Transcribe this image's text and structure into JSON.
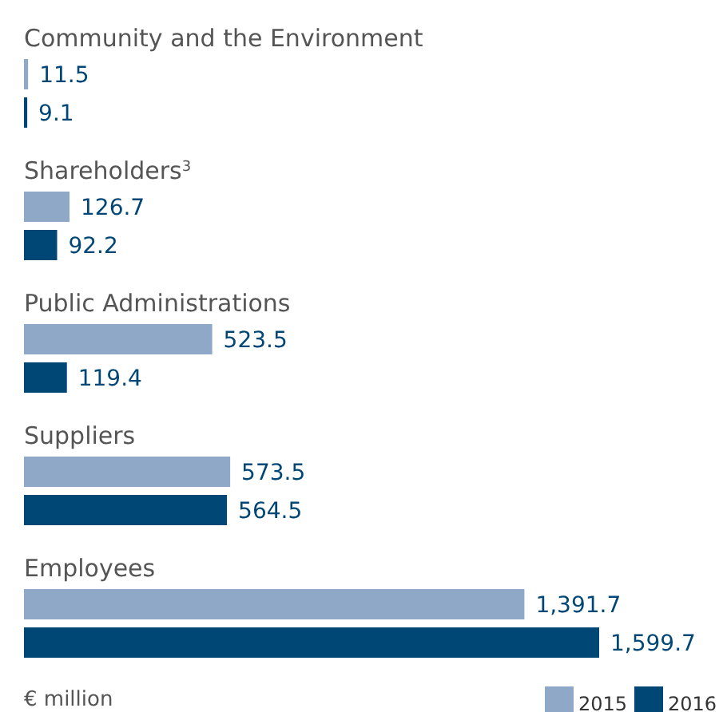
{
  "chart_data": {
    "type": "bar",
    "orientation": "horizontal",
    "categories": [
      "Community and the Environment",
      "Shareholders$^{3}$",
      "Public Administrations",
      "Suppliers",
      "Employees"
    ],
    "series": [
      {
        "name": "2015",
        "color": "#8fa8c8",
        "values": [
          11.5,
          126.7,
          523.5,
          573.5,
          1391.7
        ],
        "value_labels": [
          "11.5",
          "126.7",
          "523.5",
          "573.5",
          "1,391.7"
        ]
      },
      {
        "name": "2016",
        "color": "#004775",
        "values": [
          9.1,
          92.2,
          119.4,
          564.5,
          1599.7
        ],
        "value_labels": [
          "9.1",
          "92.2",
          "119.4",
          "564.5",
          "1,599.7"
        ]
      }
    ],
    "legend": "bottom right",
    "annotations": [
      "€ million"
    ]
  }
}
